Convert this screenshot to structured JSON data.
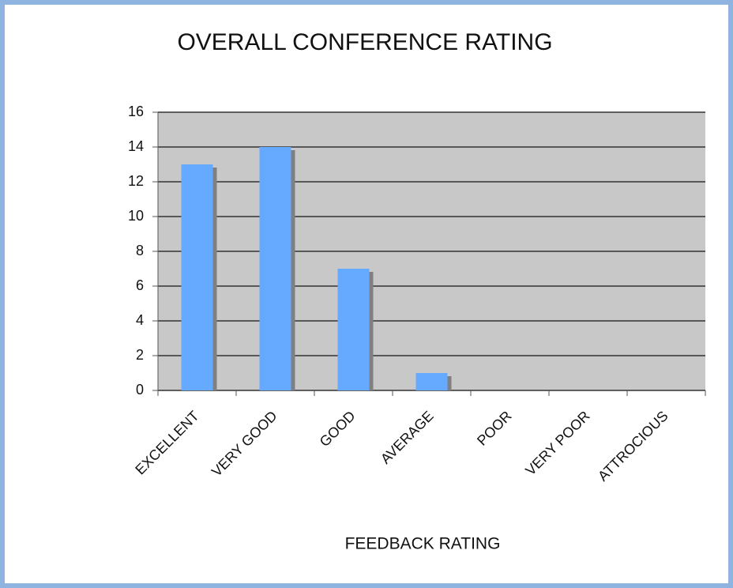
{
  "chart_data": {
    "type": "bar",
    "title": "OVERALL CONFERENCE RATING",
    "x_label": "FEEDBACK RATING",
    "categories": [
      "EXCELLENT",
      "VERY GOOD",
      "GOOD",
      "AVERAGE",
      "POOR",
      "VERY POOR",
      "ATTROCIOUS"
    ],
    "values": [
      13,
      14,
      7,
      1,
      0,
      0,
      0
    ],
    "color": "#66aaff",
    "ylim": [
      0,
      16
    ],
    "yticks": [
      0,
      2,
      4,
      6,
      8,
      10,
      12,
      14,
      16
    ],
    "grid": true
  }
}
